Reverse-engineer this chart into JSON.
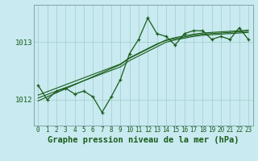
{
  "title": "Graphe pression niveau de la mer (hPa)",
  "background_color": "#c8eaf0",
  "grid_color": "#a0cccc",
  "line_color": "#1a5c1a",
  "x_labels": [
    "0",
    "1",
    "2",
    "3",
    "4",
    "5",
    "6",
    "7",
    "8",
    "9",
    "10",
    "11",
    "12",
    "13",
    "14",
    "15",
    "16",
    "17",
    "18",
    "19",
    "20",
    "21",
    "22",
    "23"
  ],
  "x_values": [
    0,
    1,
    2,
    3,
    4,
    5,
    6,
    7,
    8,
    9,
    10,
    11,
    12,
    13,
    14,
    15,
    16,
    17,
    18,
    19,
    20,
    21,
    22,
    23
  ],
  "pressure_data": [
    1012.25,
    1012.0,
    1012.15,
    1012.2,
    1012.1,
    1012.15,
    1012.05,
    1011.78,
    1012.05,
    1012.35,
    1012.8,
    1013.05,
    1013.42,
    1013.15,
    1013.1,
    1012.95,
    1013.15,
    1013.2,
    1013.2,
    1013.05,
    1013.1,
    1013.05,
    1013.25,
    1013.05
  ],
  "trend1": [
    1012.03,
    1012.09,
    1012.15,
    1012.21,
    1012.27,
    1012.33,
    1012.39,
    1012.45,
    1012.51,
    1012.57,
    1012.68,
    1012.76,
    1012.84,
    1012.92,
    1013.0,
    1013.04,
    1013.07,
    1013.1,
    1013.12,
    1013.13,
    1013.14,
    1013.15,
    1013.16,
    1013.17
  ],
  "trend2": [
    1011.98,
    1012.05,
    1012.12,
    1012.19,
    1012.26,
    1012.33,
    1012.4,
    1012.47,
    1012.54,
    1012.61,
    1012.72,
    1012.8,
    1012.88,
    1012.96,
    1013.04,
    1013.08,
    1013.11,
    1013.14,
    1013.16,
    1013.17,
    1013.18,
    1013.19,
    1013.2,
    1013.21
  ],
  "trend3": [
    1012.08,
    1012.14,
    1012.2,
    1012.26,
    1012.32,
    1012.38,
    1012.44,
    1012.5,
    1012.56,
    1012.62,
    1012.73,
    1012.81,
    1012.89,
    1012.97,
    1013.03,
    1013.06,
    1013.09,
    1013.12,
    1013.14,
    1013.15,
    1013.16,
    1013.17,
    1013.18,
    1013.19
  ],
  "yticks": [
    1012.0,
    1013.0
  ],
  "ylim": [
    1011.55,
    1013.65
  ],
  "xlim": [
    -0.5,
    23.5
  ],
  "xlabel_fontsize": 5.5,
  "ylabel_fontsize": 6.5,
  "title_fontsize": 7.5
}
